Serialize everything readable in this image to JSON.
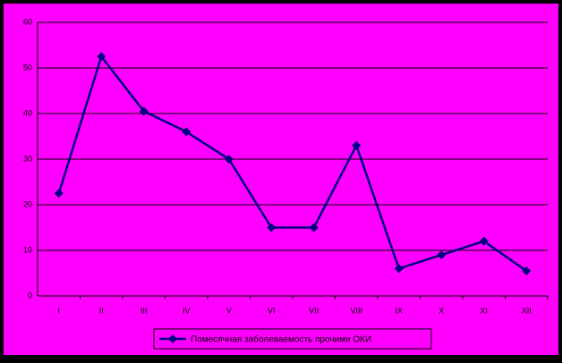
{
  "chart_data": {
    "type": "line",
    "categories": [
      "I",
      "II",
      "III",
      "IV",
      "V",
      "VI",
      "VII",
      "VIII",
      "IX",
      "X",
      "XI",
      "XII"
    ],
    "series": [
      {
        "name": "Помесячная заболеваемость прочими ОКИ",
        "color": "#000080",
        "values": [
          22.5,
          52.5,
          40.5,
          36,
          30,
          15,
          15,
          33,
          6,
          9,
          12,
          5.5
        ]
      }
    ],
    "ylim": [
      0,
      60
    ],
    "yticks": [
      0,
      10,
      20,
      30,
      40,
      50,
      60
    ],
    "grid": true,
    "legend": "bottom"
  }
}
